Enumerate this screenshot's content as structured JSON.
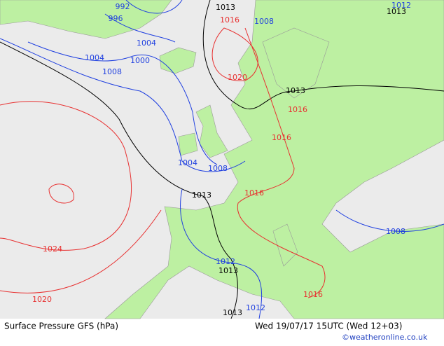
{
  "map": {
    "isobar_labels": [
      "992",
      "996",
      "1013",
      "1016",
      "1008",
      "1013",
      "1012",
      "1004",
      "1004",
      "1000",
      "1008",
      "1020",
      "1013",
      "1016",
      "1016",
      "1004",
      "1008",
      "1013",
      "1016",
      "1008",
      "1024",
      "1012",
      "1013",
      "1016",
      "1020",
      "1012",
      "1013"
    ]
  },
  "footer": {
    "title": "Surface Pressure GFS (hPa)",
    "datetime": "Wed 19/07/17 15UTC  (Wed 12+03)",
    "credit": "©weatheronline.co.uk"
  }
}
